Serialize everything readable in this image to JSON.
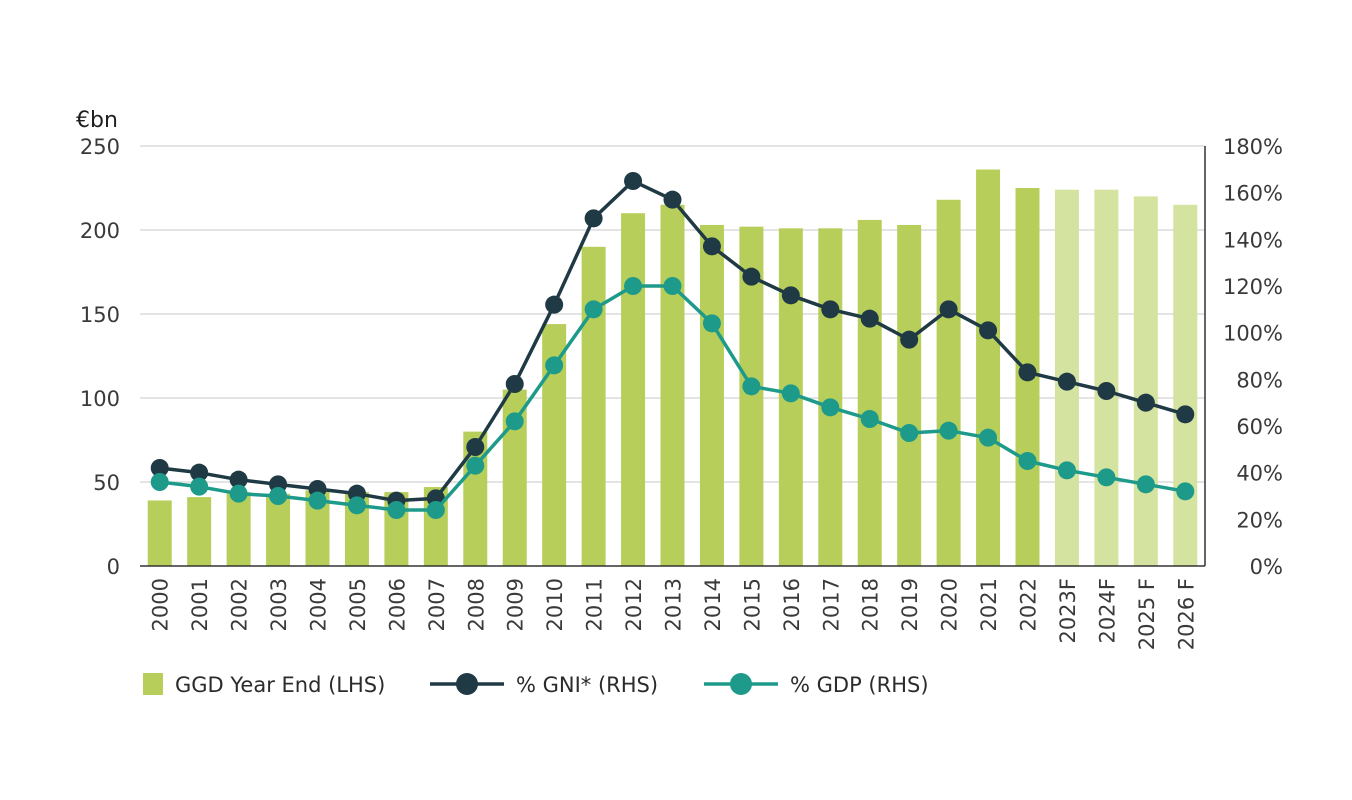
{
  "chart_data": {
    "type": "bar",
    "unit_label": "€bn",
    "categories": [
      "2000",
      "2001",
      "2002",
      "2003",
      "2004",
      "2005",
      "2006",
      "2007",
      "2008",
      "2009",
      "2010",
      "2011",
      "2012",
      "2013",
      "2014",
      "2015",
      "2016",
      "2017",
      "2018",
      "2019",
      "2020",
      "2021",
      "2022",
      "2023F",
      "2024F",
      "2025 F",
      "2026 F"
    ],
    "forecast_categories": [
      "2023F",
      "2024F",
      "2025 F",
      "2026 F"
    ],
    "left_axis": {
      "ylim": [
        0,
        250
      ],
      "ticks": [
        "0",
        "50",
        "100",
        "150",
        "200",
        "250"
      ]
    },
    "right_axis": {
      "ylim": [
        0,
        180
      ],
      "ticks": [
        "0%",
        "20%",
        "40%",
        "60%",
        "80%",
        "100%",
        "120%",
        "140%",
        "160%",
        "180%"
      ]
    },
    "series": [
      {
        "name": "GGD Year End (LHS)",
        "type": "bar",
        "axis": "left",
        "values": [
          39,
          41,
          44,
          43,
          45,
          44,
          44,
          47,
          80,
          105,
          144,
          190,
          210,
          215,
          203,
          202,
          201,
          201,
          206,
          203,
          218,
          236,
          225,
          224,
          224,
          220,
          215
        ]
      },
      {
        "name": "% GNI* (RHS)",
        "type": "line",
        "axis": "right",
        "values": [
          42,
          40,
          37,
          35,
          33,
          31,
          28,
          29,
          51,
          78,
          112,
          149,
          165,
          157,
          137,
          124,
          116,
          110,
          106,
          97,
          110,
          101,
          83,
          79,
          75,
          70,
          65
        ]
      },
      {
        "name": "% GDP (RHS)",
        "type": "line",
        "axis": "right",
        "values": [
          36,
          34,
          31,
          30,
          28,
          26,
          24,
          24,
          43,
          62,
          86,
          110,
          120,
          120,
          104,
          77,
          74,
          68,
          63,
          57,
          58,
          55,
          45,
          41,
          38,
          35,
          32
        ]
      }
    ],
    "colors": {
      "bars": "#b7cf5a",
      "bars_forecast": "#d5e3a0",
      "gni": "#1f3a45",
      "gdp": "#1e9a8a",
      "grid": "#c8c8c8",
      "axis": "#333333"
    },
    "grid": true,
    "legend_position": "bottom-left"
  }
}
